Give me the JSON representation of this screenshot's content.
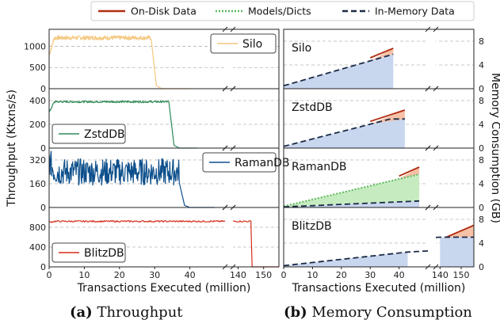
{
  "legend": [
    {
      "label": "On-Disk Data",
      "color": "#b22d12",
      "style": "solid"
    },
    {
      "label": "Models/Dicts",
      "color": "#5cb85c",
      "style": "dotted"
    },
    {
      "label": "In-Memory Data",
      "color": "#1b2a45",
      "style": "dashed"
    }
  ],
  "captions": {
    "a_tag": "(a)",
    "a_text": "Throughput",
    "b_tag": "(b)",
    "b_text": "Memory Consumption"
  },
  "chart_data": [
    {
      "type": "line",
      "title": "Throughput",
      "xlabel": "Transactions Executed (million)",
      "ylabel": "Throughput (Ktxns/s)",
      "x_ticks": [
        "0",
        "10",
        "20",
        "30",
        "40",
        "140",
        "150"
      ],
      "x_break": true,
      "panels": [
        {
          "name": "Silo",
          "color": "#f5c77e",
          "y_ticks": [
            "0",
            "500",
            "1000"
          ],
          "ylim": [
            0,
            1400
          ],
          "series": {
            "start_level": 800,
            "level": 1200,
            "noise": 50,
            "end_x": 29,
            "tail_end_x": 40
          },
          "legend_pos": "top-right"
        },
        {
          "name": "ZstdDB",
          "color": "#2e8b57",
          "y_ticks": [
            "0",
            "200",
            "400"
          ],
          "ylim": [
            0,
            500
          ],
          "series": {
            "start_level": 300,
            "level": 390,
            "noise": 8,
            "end_x": 34,
            "tail_end_x": 42
          },
          "legend_pos": "bottom-left"
        },
        {
          "name": "RamanDB",
          "color": "#0d4f8b",
          "y_ticks": [
            "0",
            "160",
            "320"
          ],
          "ylim": [
            0,
            400
          ],
          "series": {
            "start_level": 320,
            "level": 240,
            "noise": 90,
            "end_x": 37,
            "tail_end_x": 47
          },
          "legend_pos": "top-right"
        },
        {
          "name": "BlitzDB",
          "color": "#d62d1a",
          "y_ticks": [
            "0",
            "400",
            "800"
          ],
          "ylim": [
            0,
            1200
          ],
          "series": {
            "start_level": 900,
            "level": 920,
            "noise": 15,
            "end_x": 145,
            "tail_end_x": 156
          },
          "legend_pos": "bottom-left"
        }
      ]
    },
    {
      "type": "area",
      "title": "Memory Consumption",
      "xlabel": "Transactions Executed (million)",
      "ylabel": "Memory Consumption (GB)",
      "x_ticks": [
        "0",
        "10",
        "20",
        "30",
        "40",
        "140",
        "150"
      ],
      "y_ticks": [
        "0",
        "4",
        "8"
      ],
      "ylim": [
        0,
        10
      ],
      "x_break": true,
      "panels": [
        {
          "name": "Silo",
          "in_memory": [
            [
              0,
              0.5
            ],
            [
              38,
              5.8
            ]
          ],
          "models_dicts": [
            [
              0,
              0.5
            ],
            [
              38,
              5.8
            ]
          ],
          "on_disk": [
            [
              30,
              5.2
            ],
            [
              38,
              6.8
            ]
          ]
        },
        {
          "name": "ZstdDB",
          "in_memory": [
            [
              0,
              0.3
            ],
            [
              37,
              4.9
            ],
            [
              42,
              4.9
            ]
          ],
          "models_dicts": [
            [
              0,
              0.3
            ],
            [
              37,
              4.9
            ],
            [
              42,
              4.9
            ]
          ],
          "on_disk": [
            [
              30,
              4.5
            ],
            [
              42,
              6.4
            ]
          ]
        },
        {
          "name": "RamanDB",
          "in_memory": [
            [
              0,
              0.1
            ],
            [
              47,
              1.1
            ]
          ],
          "models_dicts": [
            [
              0,
              0.2
            ],
            [
              47,
              5.6
            ]
          ],
          "on_disk": [
            [
              40,
              5.3
            ],
            [
              47,
              6.8
            ]
          ]
        },
        {
          "name": "BlitzDB",
          "in_memory": [
            [
              0,
              0.2
            ],
            [
              43,
              2.5
            ],
            [
              140,
              5.0
            ],
            [
              156,
              5.0
            ]
          ],
          "models_dicts": [
            [
              0,
              0.2
            ],
            [
              43,
              2.5
            ],
            [
              140,
              5.0
            ],
            [
              156,
              5.0
            ]
          ],
          "on_disk": [
            [
              143,
              5.0
            ],
            [
              156,
              7.0
            ]
          ]
        }
      ]
    }
  ]
}
